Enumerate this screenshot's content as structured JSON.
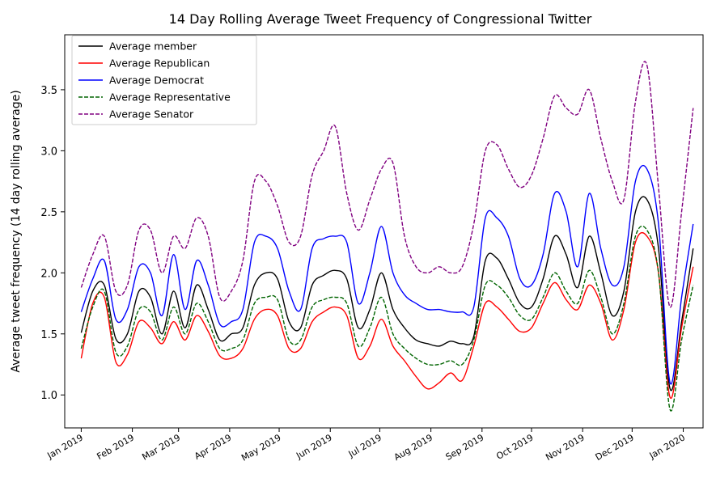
{
  "chart_data": {
    "type": "line",
    "title": "14 Day Rolling Average Tweet Frequency of Congressional Twitter",
    "xlabel": "",
    "ylabel": "Average tweet frequency (14 day rolling average)",
    "x_tick_labels": [
      "Jan 2019",
      "Feb 2019",
      "Mar 2019",
      "Apr 2019",
      "May 2019",
      "Jun 2019",
      "Jul 2019",
      "Aug 2019",
      "Sep 2019",
      "Oct 2019",
      "Nov 2019",
      "Dec 2019",
      "Jan 2020"
    ],
    "y_ticks": [
      1.0,
      1.5,
      2.0,
      2.5,
      3.0,
      3.5
    ],
    "y_tick_labels": [
      "1.0",
      "1.5",
      "2.0",
      "2.5",
      "3.0",
      "3.5"
    ],
    "ylim": [
      0.73,
      3.95
    ],
    "xlim": [
      "2018-12-22",
      "2020-01-13"
    ],
    "grid": false,
    "legend_position": "top-left",
    "x": [
      "2019-01-01",
      "2019-01-08",
      "2019-01-15",
      "2019-01-22",
      "2019-01-29",
      "2019-02-05",
      "2019-02-12",
      "2019-02-19",
      "2019-02-26",
      "2019-03-05",
      "2019-03-12",
      "2019-03-19",
      "2019-03-26",
      "2019-04-02",
      "2019-04-09",
      "2019-04-16",
      "2019-04-23",
      "2019-04-30",
      "2019-05-07",
      "2019-05-14",
      "2019-05-21",
      "2019-05-28",
      "2019-06-04",
      "2019-06-11",
      "2019-06-18",
      "2019-06-25",
      "2019-07-02",
      "2019-07-09",
      "2019-07-16",
      "2019-07-23",
      "2019-07-30",
      "2019-08-06",
      "2019-08-13",
      "2019-08-20",
      "2019-08-27",
      "2019-09-03",
      "2019-09-10",
      "2019-09-17",
      "2019-09-24",
      "2019-10-01",
      "2019-10-08",
      "2019-10-15",
      "2019-10-22",
      "2019-10-29",
      "2019-11-05",
      "2019-11-12",
      "2019-11-19",
      "2019-11-26",
      "2019-12-03",
      "2019-12-10",
      "2019-12-17",
      "2019-12-24",
      "2019-12-31",
      "2020-01-07"
    ],
    "series": [
      {
        "name": "Average member",
        "color": "#000000",
        "dash": "solid",
        "values": [
          1.51,
          1.85,
          1.9,
          1.46,
          1.5,
          1.85,
          1.8,
          1.5,
          1.85,
          1.55,
          1.9,
          1.7,
          1.45,
          1.5,
          1.55,
          1.9,
          2.0,
          1.95,
          1.6,
          1.55,
          1.9,
          1.98,
          2.02,
          1.95,
          1.55,
          1.7,
          2.0,
          1.7,
          1.55,
          1.45,
          1.42,
          1.4,
          1.44,
          1.42,
          1.48,
          2.1,
          2.12,
          1.95,
          1.75,
          1.72,
          1.95,
          2.3,
          2.15,
          1.88,
          2.3,
          2.0,
          1.65,
          1.85,
          2.5,
          2.6,
          2.2,
          1.05,
          1.6,
          2.2
        ]
      },
      {
        "name": "Average Republican",
        "color": "#ff0000",
        "dash": "solid",
        "values": [
          1.3,
          1.75,
          1.8,
          1.27,
          1.33,
          1.6,
          1.55,
          1.42,
          1.6,
          1.45,
          1.65,
          1.52,
          1.32,
          1.3,
          1.38,
          1.62,
          1.7,
          1.65,
          1.38,
          1.38,
          1.6,
          1.68,
          1.72,
          1.65,
          1.3,
          1.4,
          1.62,
          1.4,
          1.28,
          1.15,
          1.05,
          1.1,
          1.18,
          1.12,
          1.4,
          1.75,
          1.72,
          1.62,
          1.52,
          1.55,
          1.75,
          1.92,
          1.78,
          1.7,
          1.9,
          1.75,
          1.45,
          1.7,
          2.25,
          2.3,
          2.0,
          0.98,
          1.55,
          2.05
        ]
      },
      {
        "name": "Average Democrat",
        "color": "#0000ff",
        "dash": "solid",
        "values": [
          1.68,
          1.95,
          2.1,
          1.62,
          1.7,
          2.05,
          2.0,
          1.65,
          2.15,
          1.7,
          2.1,
          1.9,
          1.58,
          1.6,
          1.7,
          2.25,
          2.3,
          2.2,
          1.85,
          1.7,
          2.2,
          2.28,
          2.3,
          2.25,
          1.75,
          2.0,
          2.38,
          2.0,
          1.82,
          1.75,
          1.7,
          1.7,
          1.68,
          1.68,
          1.72,
          2.45,
          2.45,
          2.3,
          1.95,
          1.9,
          2.15,
          2.65,
          2.5,
          2.05,
          2.65,
          2.2,
          1.9,
          2.05,
          2.75,
          2.85,
          2.4,
          1.1,
          1.8,
          2.4
        ]
      },
      {
        "name": "Average Representative",
        "color": "#006400",
        "dash": "dashed",
        "values": [
          1.38,
          1.72,
          1.85,
          1.35,
          1.4,
          1.7,
          1.68,
          1.45,
          1.72,
          1.5,
          1.75,
          1.6,
          1.38,
          1.38,
          1.45,
          1.75,
          1.8,
          1.78,
          1.45,
          1.45,
          1.72,
          1.78,
          1.8,
          1.75,
          1.4,
          1.55,
          1.8,
          1.5,
          1.38,
          1.3,
          1.25,
          1.25,
          1.28,
          1.25,
          1.45,
          1.9,
          1.9,
          1.8,
          1.65,
          1.62,
          1.8,
          2.0,
          1.85,
          1.75,
          2.02,
          1.8,
          1.5,
          1.75,
          2.3,
          2.35,
          2.0,
          0.88,
          1.45,
          1.9
        ]
      },
      {
        "name": "Average Senator",
        "color": "#800080",
        "dash": "dashed",
        "values": [
          1.88,
          2.15,
          2.3,
          1.85,
          1.9,
          2.35,
          2.35,
          2.0,
          2.3,
          2.2,
          2.45,
          2.3,
          1.8,
          1.85,
          2.1,
          2.75,
          2.75,
          2.55,
          2.25,
          2.3,
          2.8,
          3.0,
          3.2,
          2.65,
          2.35,
          2.6,
          2.85,
          2.9,
          2.3,
          2.05,
          2.0,
          2.05,
          2.0,
          2.05,
          2.4,
          3.0,
          3.05,
          2.85,
          2.7,
          2.8,
          3.1,
          3.45,
          3.35,
          3.3,
          3.5,
          3.1,
          2.75,
          2.6,
          3.4,
          3.7,
          2.7,
          1.72,
          2.5,
          3.35
        ]
      }
    ]
  }
}
